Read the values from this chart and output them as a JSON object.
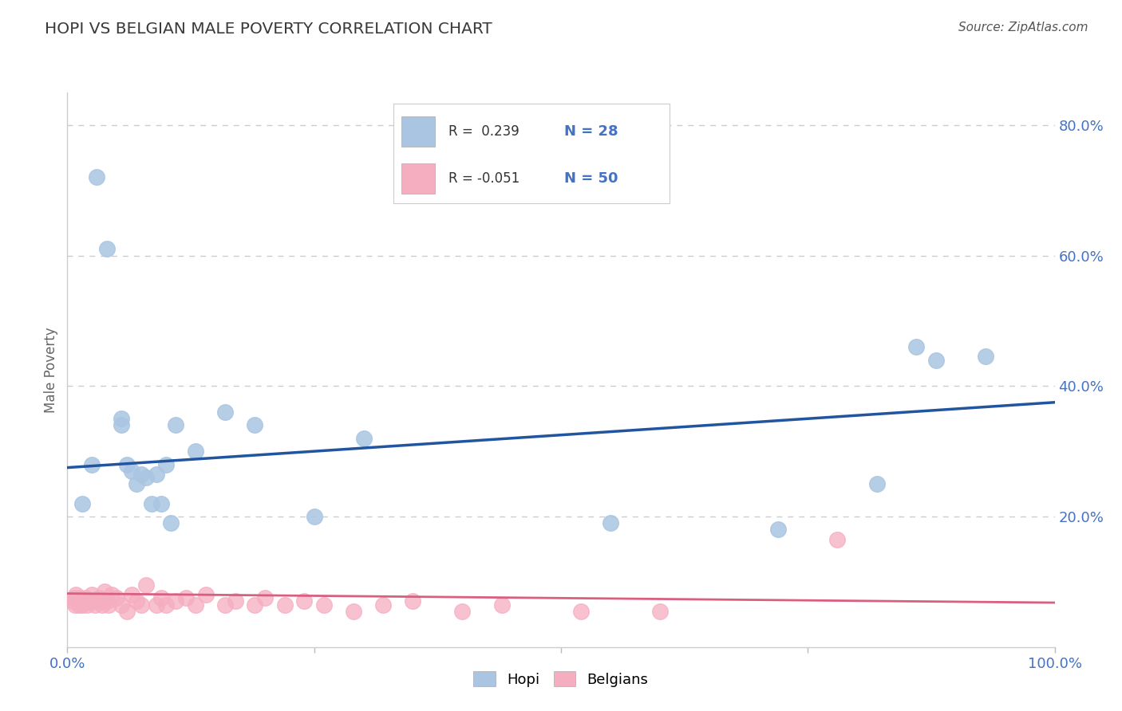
{
  "title": "HOPI VS BELGIAN MALE POVERTY CORRELATION CHART",
  "source": "Source: ZipAtlas.com",
  "ylabel": "Male Poverty",
  "xlim": [
    0.0,
    1.0
  ],
  "ylim": [
    0.0,
    0.85
  ],
  "hopi_R": 0.239,
  "hopi_N": 28,
  "belgian_R": -0.051,
  "belgian_N": 50,
  "hopi_color": "#aac5e2",
  "belgian_color": "#f5adc0",
  "hopi_line_color": "#2255a0",
  "belgian_line_color": "#d95f80",
  "hopi_x": [
    0.015,
    0.025,
    0.03,
    0.04,
    0.055,
    0.055,
    0.06,
    0.065,
    0.07,
    0.075,
    0.08,
    0.085,
    0.09,
    0.095,
    0.1,
    0.105,
    0.11,
    0.13,
    0.16,
    0.19,
    0.25,
    0.3,
    0.55,
    0.72,
    0.82,
    0.86,
    0.88,
    0.93
  ],
  "hopi_y": [
    0.22,
    0.28,
    0.72,
    0.61,
    0.34,
    0.35,
    0.28,
    0.27,
    0.25,
    0.265,
    0.26,
    0.22,
    0.265,
    0.22,
    0.28,
    0.19,
    0.34,
    0.3,
    0.36,
    0.34,
    0.2,
    0.32,
    0.19,
    0.18,
    0.25,
    0.46,
    0.44,
    0.445
  ],
  "belgian_x": [
    0.005,
    0.007,
    0.008,
    0.009,
    0.01,
    0.012,
    0.013,
    0.015,
    0.016,
    0.018,
    0.02,
    0.022,
    0.025,
    0.028,
    0.03,
    0.032,
    0.035,
    0.038,
    0.04,
    0.042,
    0.045,
    0.05,
    0.055,
    0.06,
    0.065,
    0.07,
    0.075,
    0.08,
    0.09,
    0.095,
    0.1,
    0.11,
    0.12,
    0.13,
    0.14,
    0.16,
    0.17,
    0.19,
    0.2,
    0.22,
    0.24,
    0.26,
    0.29,
    0.32,
    0.35,
    0.4,
    0.44,
    0.52,
    0.6,
    0.78
  ],
  "belgian_y": [
    0.07,
    0.075,
    0.065,
    0.08,
    0.07,
    0.065,
    0.075,
    0.065,
    0.07,
    0.075,
    0.065,
    0.07,
    0.08,
    0.065,
    0.07,
    0.075,
    0.065,
    0.085,
    0.07,
    0.065,
    0.08,
    0.075,
    0.065,
    0.055,
    0.08,
    0.07,
    0.065,
    0.095,
    0.065,
    0.075,
    0.065,
    0.07,
    0.075,
    0.065,
    0.08,
    0.065,
    0.07,
    0.065,
    0.075,
    0.065,
    0.07,
    0.065,
    0.055,
    0.065,
    0.07,
    0.055,
    0.065,
    0.055,
    0.055,
    0.165
  ],
  "hopi_line_x0": 0.0,
  "hopi_line_y0": 0.275,
  "hopi_line_x1": 1.0,
  "hopi_line_y1": 0.375,
  "belgian_line_x0": 0.0,
  "belgian_line_y0": 0.082,
  "belgian_line_x1": 1.0,
  "belgian_line_y1": 0.068,
  "grid_yticks": [
    0.2,
    0.4,
    0.6,
    0.8
  ],
  "grid_color": "#cccccc",
  "bg_color": "#ffffff",
  "title_color": "#3a3a3a",
  "tick_color": "#4472c4",
  "axis_label_color": "#666666"
}
